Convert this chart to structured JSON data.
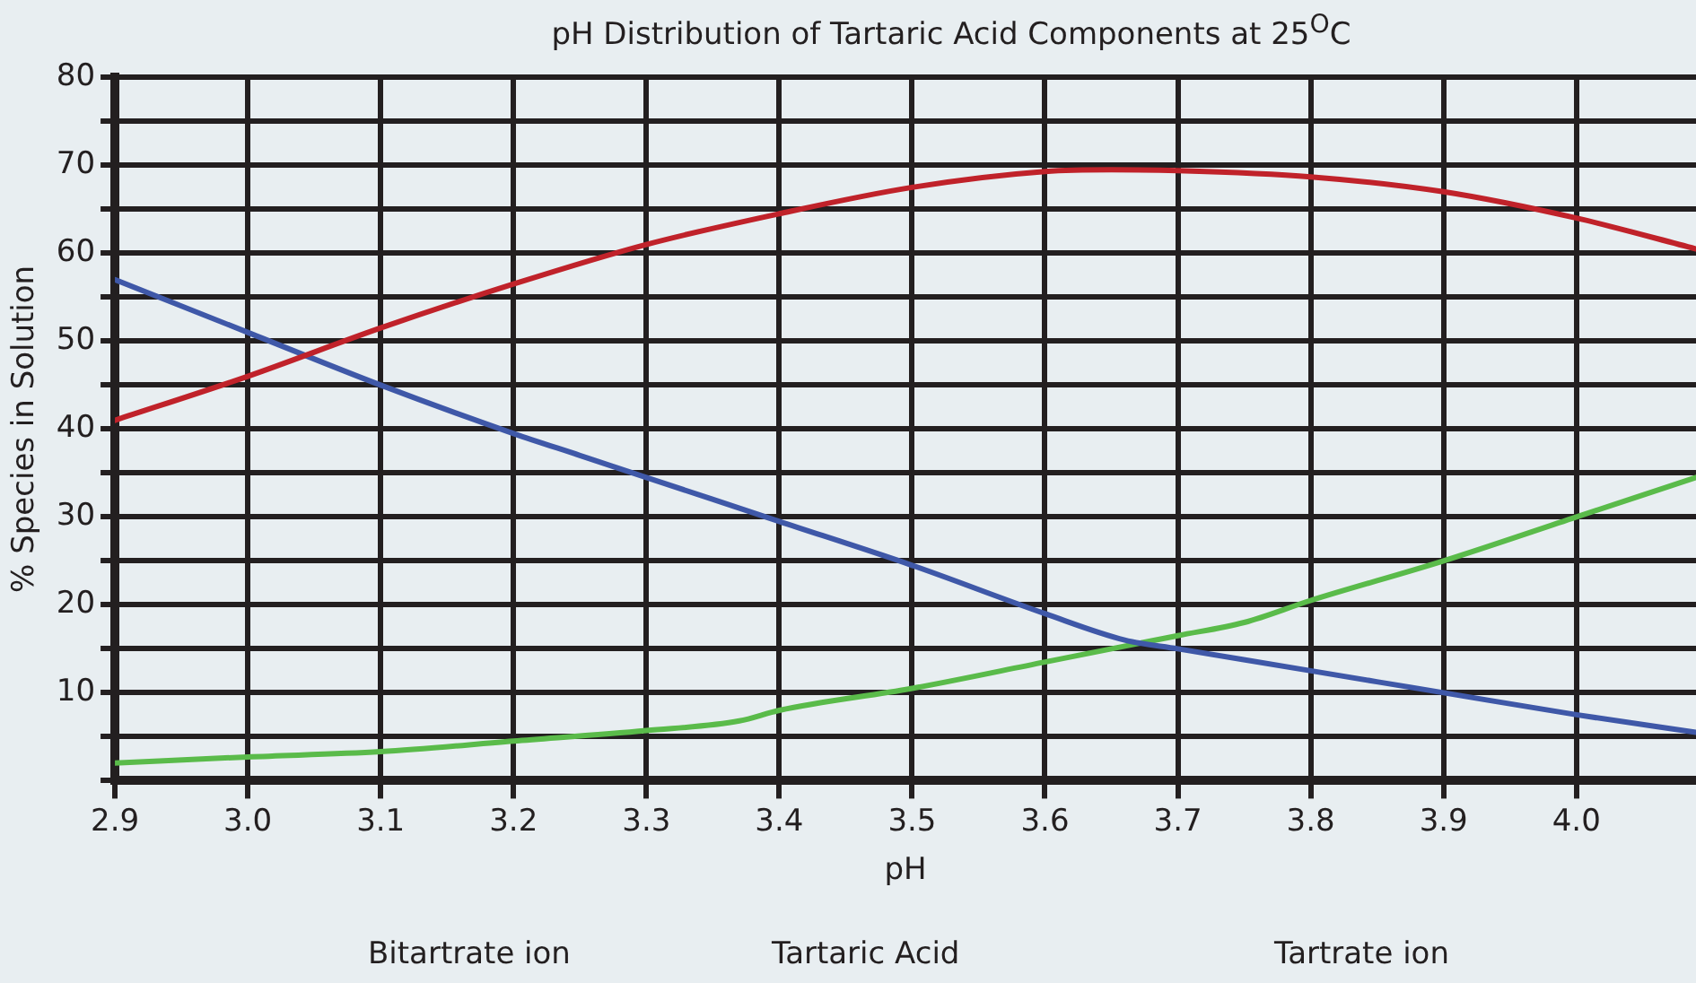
{
  "chart_data": {
    "type": "line",
    "title": "pH Distribution of Tartaric Acid Components at 25$^{O}$C",
    "xlabel": "pH",
    "ylabel": "% Species in Solution",
    "annotations": [
      "Bitartrate ion",
      "Tartaric Acid",
      "Tartrate ion"
    ],
    "xlim": [
      2.9,
      4.09
    ],
    "xticks": [
      2.9,
      {
        "value": 3.0,
        "label": "3.0"
      },
      3.1,
      3.2,
      3.3,
      3.4,
      3.5,
      3.6,
      3.7,
      3.8,
      3.9,
      {
        "value": 4.0,
        "label": "4.0"
      }
    ],
    "ylim": [
      0,
      80
    ],
    "yticks": [
      {
        "value": 0,
        "label": null
      },
      {
        "value": 5,
        "label": null
      },
      10,
      {
        "value": 15,
        "label": null
      },
      20,
      {
        "value": 25,
        "label": null
      },
      30,
      {
        "value": 35,
        "label": null
      },
      40,
      {
        "value": 45,
        "label": null
      },
      50,
      {
        "value": 55,
        "label": null
      },
      60,
      {
        "value": 65,
        "label": null
      },
      70,
      {
        "value": 75,
        "label": null
      },
      80
    ],
    "grid": true,
    "legend": false,
    "marker": "none",
    "line_style": "solid",
    "series": [
      {
        "color": "#c0222a",
        "x": [
          2.9,
          3.0,
          3.1,
          3.2,
          3.3,
          3.4,
          3.5,
          3.6,
          3.65,
          3.7,
          3.8,
          3.9,
          4.0,
          4.09
        ],
        "values": [
          41,
          46,
          51.5,
          56.5,
          61,
          64.5,
          67.5,
          69.3,
          69.5,
          69.4,
          68.7,
          67,
          64,
          60.5
        ]
      },
      {
        "color": "#3f58a8",
        "x": [
          2.9,
          3.0,
          3.1,
          3.2,
          3.25,
          3.3,
          3.4,
          3.5,
          3.6,
          3.66,
          3.7,
          3.8,
          3.9,
          4.0,
          4.09
        ],
        "values": [
          57,
          51,
          45,
          39.5,
          37,
          34.5,
          29.5,
          24.5,
          19,
          16,
          15,
          12.5,
          10,
          7.5,
          5.5
        ]
      },
      {
        "color": "#5abb4a",
        "x": [
          2.9,
          3.0,
          3.1,
          3.2,
          3.3,
          3.37,
          3.4,
          3.5,
          3.6,
          3.7,
          3.75,
          3.8,
          3.9,
          4.0,
          4.09
        ],
        "values": [
          2,
          2.7,
          3.3,
          4.5,
          5.7,
          6.8,
          8,
          10.5,
          13.5,
          16.5,
          18,
          20.5,
          25,
          30,
          34.5
        ]
      }
    ]
  }
}
